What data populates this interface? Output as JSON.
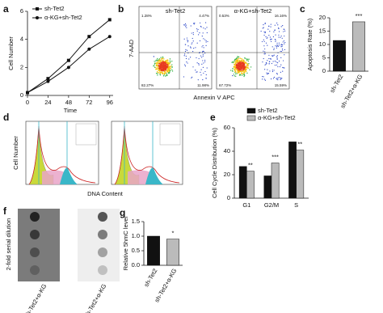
{
  "panels": [
    "a",
    "b",
    "c",
    "d",
    "e",
    "f",
    "g"
  ],
  "chart_data": [
    {
      "type": "line",
      "xlabel": "Time",
      "ylabel": "Cell Number",
      "x": [
        0,
        24,
        48,
        72,
        96
      ],
      "xlim": [
        0,
        100
      ],
      "xticks": [
        0,
        24,
        48,
        72,
        96
      ],
      "ylim": [
        0,
        6
      ],
      "yticks": [
        0,
        2,
        4,
        6
      ],
      "series": [
        {
          "name": "sh-Tet2",
          "color": "#111111",
          "marker": "square",
          "values": [
            0.2,
            1.2,
            2.5,
            4.2,
            5.4
          ]
        },
        {
          "name": "α-KG+sh-Tet2",
          "color": "#111111",
          "marker": "circle",
          "values": [
            0.2,
            1.0,
            2.0,
            3.3,
            4.2
          ]
        }
      ]
    },
    {
      "type": "bar",
      "ylabel": "Apoptosis Rate (%)",
      "categories": [
        "sh-Tet2",
        "sh-Tet2+α-KG"
      ],
      "values": [
        11.5,
        18.5
      ],
      "colors": [
        "#111111",
        "#bbbbbb"
      ],
      "significance": [
        null,
        "***"
      ],
      "ylim": [
        0,
        20
      ],
      "yticks": [
        0,
        5,
        10,
        15,
        20
      ]
    },
    {
      "type": "grouped_bar",
      "ylabel": "Cell Cycle Distribution (%)",
      "categories": [
        "G1",
        "G2/M",
        "S"
      ],
      "series": [
        {
          "name": "sh-Tet2",
          "color": "#111111",
          "values": [
            27,
            19,
            48
          ]
        },
        {
          "name": "α-KG+sh-Tet2",
          "color": "#bbbbbb",
          "values": [
            23,
            30,
            41
          ]
        }
      ],
      "significance": [
        "**",
        "***",
        "**"
      ],
      "ylim": [
        0,
        60
      ],
      "yticks": [
        0,
        20,
        40,
        60
      ]
    },
    {
      "type": "bar",
      "ylabel": "Relative 5hmC level",
      "categories": [
        "sh-Tet2",
        "sh-Tet2+α-KG"
      ],
      "values": [
        1.0,
        0.9
      ],
      "colors": [
        "#111111",
        "#bbbbbb"
      ],
      "significance": [
        null,
        "*"
      ],
      "ylim": [
        0,
        1.5
      ],
      "yticks": [
        {
          "value": 0,
          "label": "0.0"
        },
        {
          "value": 0.5,
          "label": "0.5"
        },
        {
          "value": 1,
          "label": "1.0"
        },
        {
          "value": 1.5,
          "label": "1.5"
        }
      ]
    }
  ],
  "flow": {
    "ylabel": "7-AAD",
    "xlabel": "Annexin V APC",
    "plots": [
      {
        "label": "sh-Tet2",
        "quadrants": [
          "1.28%",
          "4.47%",
          "82.27%",
          "11.98%"
        ]
      },
      {
        "label": "α-KG+sh-Tet2",
        "quadrants": [
          "0.53%",
          "16.16%",
          "67.72%",
          "15.59%"
        ]
      }
    ]
  },
  "cell_cycle": {
    "ylabel": "Cell Number",
    "xlabel": "DNA Content"
  },
  "dot_blot": {
    "ylabel": "2-fold serial dilution",
    "lanes": [
      "sh-Tet2+α-KG",
      "sh-Tet2+α-KG"
    ]
  }
}
